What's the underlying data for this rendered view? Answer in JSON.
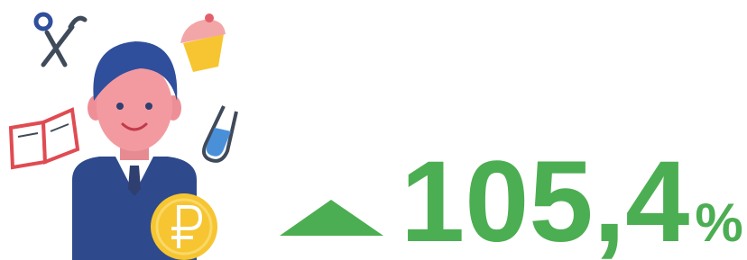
{
  "indicator": {
    "value": "105,4",
    "unit": "%"
  }
}
